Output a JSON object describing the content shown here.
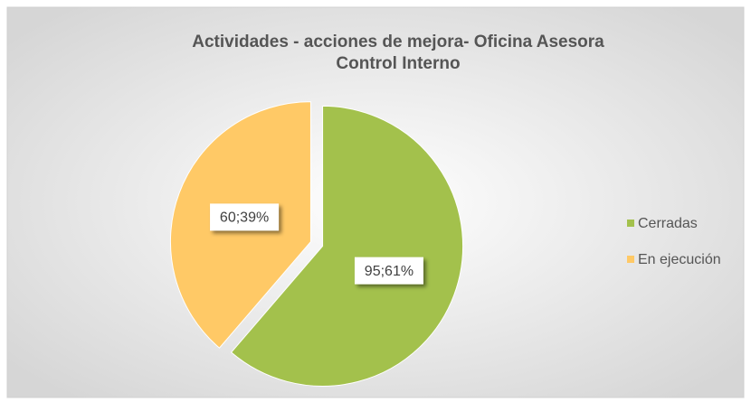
{
  "chart_data": {
    "type": "pie",
    "title": [
      "Actividades  - acciones de mejora- Oficina Asesora",
      "Control Interno"
    ],
    "categories": [
      "Cerradas",
      "En ejecución"
    ],
    "values": [
      95,
      60
    ],
    "value_labels": [
      "95;61%",
      "60;39%"
    ],
    "colors": [
      "#a3c14c",
      "#ffc966"
    ],
    "legend": "right"
  }
}
